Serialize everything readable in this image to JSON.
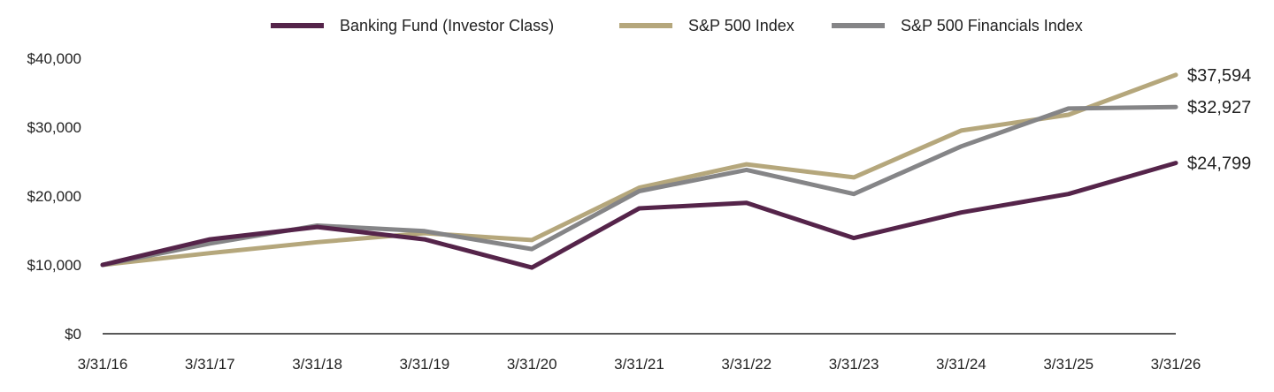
{
  "chart_data": {
    "type": "line",
    "categories": [
      "3/31/16",
      "3/31/17",
      "3/31/18",
      "3/31/19",
      "3/31/20",
      "3/31/21",
      "3/31/22",
      "3/31/23",
      "3/31/24",
      "3/31/25",
      "3/31/26"
    ],
    "ylim": [
      0,
      40000
    ],
    "y_ticks": [
      0,
      10000,
      20000,
      30000,
      40000
    ],
    "y_tick_labels": [
      "$0",
      "$10,000",
      "$20,000",
      "$30,000",
      "$40,000"
    ],
    "grid": false,
    "legend_position": "top",
    "series": [
      {
        "name": "Banking Fund (Investor Class)",
        "color": "#55244a",
        "values": [
          10000,
          13700,
          15500,
          13700,
          9600,
          18200,
          19000,
          13900,
          17600,
          20300,
          24799
        ],
        "end_label": "$24,799"
      },
      {
        "name": "S&P 500 Index",
        "color": "#b5a77c",
        "values": [
          10000,
          11700,
          13300,
          14600,
          13600,
          21200,
          24600,
          22700,
          29500,
          31800,
          37594
        ],
        "end_label": "$37,594"
      },
      {
        "name": "S&P 500 Financials Index",
        "color": "#858587",
        "values": [
          10000,
          13100,
          15700,
          14900,
          12300,
          20700,
          23800,
          20300,
          27200,
          32700,
          32927
        ],
        "end_label": "$32,927"
      }
    ]
  }
}
